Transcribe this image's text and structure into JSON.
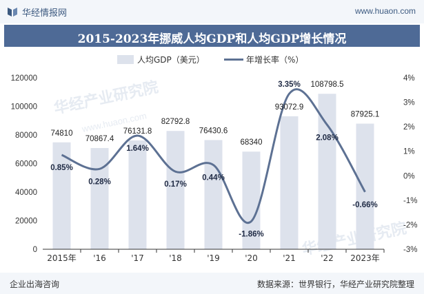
{
  "header": {
    "brand": "华经情报网",
    "url": "www.huaon.com",
    "logo_icon": "huaon-logo-icon"
  },
  "title": "2015-2023年挪威人均GDP和人均GDP增长情况",
  "footer": {
    "left": "企业出海咨询",
    "right": "数据来源：世界银行，华经产业研究院整理"
  },
  "watermark": "华经产业研究院",
  "watermark_url": "www.huaon.com",
  "colors": {
    "bar": "#dde2ec",
    "line": "#5d7193",
    "title_bg": "#4e6a96",
    "header_bg": "#f3f6fa"
  },
  "chart_data": {
    "type": "bar",
    "categories": [
      "2015年",
      "'16",
      "'17",
      "'18",
      "'19",
      "'20",
      "'21",
      "'22",
      "2023年"
    ],
    "series": [
      {
        "name": "人均GDP（美元）",
        "type": "bar",
        "axis": "left",
        "values": [
          74810,
          70867.4,
          76131.8,
          82792.8,
          76430.6,
          68340,
          93072.9,
          108798.5,
          87925.1
        ],
        "labels": [
          "74810",
          "70867.4",
          "76131.8",
          "82792.8",
          "76430.6",
          "68340",
          "93072.9",
          "108798.5",
          "87925.1"
        ]
      },
      {
        "name": "年增长率（%）",
        "type": "line",
        "axis": "right",
        "values": [
          0.85,
          0.28,
          1.64,
          0.17,
          0.44,
          -1.86,
          3.35,
          2.08,
          -0.66
        ],
        "labels": [
          "0.85%",
          "0.28%",
          "1.64%",
          "0.17%",
          "0.44%",
          "-1.86%",
          "3.35%",
          "2.08%",
          "-0.66%"
        ]
      }
    ],
    "y_left": {
      "range": [
        0,
        120000
      ],
      "ticks": [
        0,
        20000,
        40000,
        60000,
        80000,
        100000,
        120000
      ],
      "tick_labels": [
        "0",
        "20000",
        "40000",
        "60000",
        "80000",
        "100000",
        "120000"
      ]
    },
    "y_right": {
      "range": [
        -3,
        4
      ],
      "ticks": [
        -3,
        -2,
        -1,
        0,
        1,
        2,
        3,
        4
      ],
      "tick_labels": [
        "-3%",
        "-2%",
        "-1%",
        "0%",
        "1%",
        "2%",
        "3%",
        "4%"
      ]
    },
    "legend_position": "top-center",
    "grid": false
  }
}
